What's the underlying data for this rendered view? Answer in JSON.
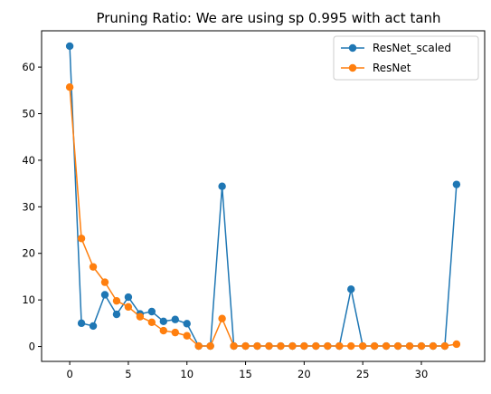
{
  "chart_data": {
    "type": "line",
    "title": "Pruning Ratio: We are using sp 0.995 with act tanh",
    "xlabel": "",
    "ylabel": "",
    "xlim": [
      -2.4,
      35.4
    ],
    "ylim": [
      -3.2,
      67.8
    ],
    "x_ticks": [
      0,
      5,
      10,
      15,
      20,
      25,
      30
    ],
    "y_ticks": [
      0,
      10,
      20,
      30,
      40,
      50,
      60
    ],
    "grid": false,
    "legend_position": "top-right",
    "x": [
      0,
      1,
      2,
      3,
      4,
      5,
      6,
      7,
      8,
      9,
      10,
      11,
      12,
      13,
      14,
      15,
      16,
      17,
      18,
      19,
      20,
      21,
      22,
      23,
      24,
      25,
      26,
      27,
      28,
      29,
      30,
      31,
      32,
      33
    ],
    "series": [
      {
        "name": "ResNet_scaled",
        "color": "#1f77b4",
        "marker": "circle",
        "values": [
          64.5,
          5.0,
          4.4,
          11.1,
          6.9,
          10.6,
          7.0,
          7.5,
          5.4,
          5.8,
          4.9,
          0.1,
          0.1,
          34.4,
          0.1,
          0.1,
          0.1,
          0.1,
          0.1,
          0.1,
          0.1,
          0.1,
          0.1,
          0.1,
          12.3,
          0.1,
          0.1,
          0.1,
          0.1,
          0.1,
          0.1,
          0.1,
          0.1,
          34.8
        ]
      },
      {
        "name": "ResNet",
        "color": "#ff7f0e",
        "marker": "circle",
        "values": [
          55.7,
          23.2,
          17.1,
          13.8,
          9.8,
          8.5,
          6.4,
          5.2,
          3.4,
          3.0,
          2.3,
          0.1,
          0.1,
          6.0,
          0.1,
          0.1,
          0.1,
          0.1,
          0.1,
          0.1,
          0.1,
          0.1,
          0.1,
          0.1,
          0.1,
          0.1,
          0.1,
          0.1,
          0.1,
          0.1,
          0.1,
          0.1,
          0.1,
          0.5
        ]
      }
    ]
  }
}
